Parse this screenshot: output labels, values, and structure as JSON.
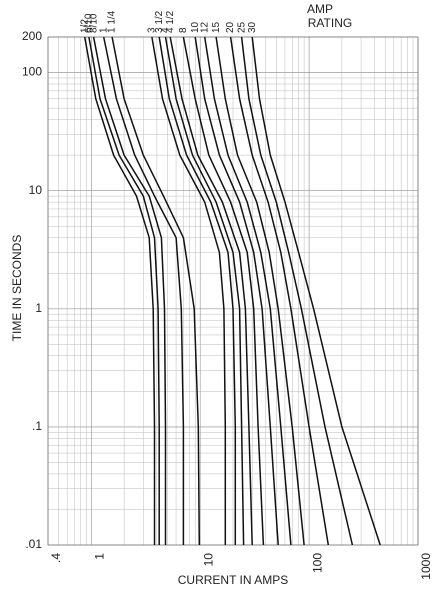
{
  "chart_data": {
    "type": "line",
    "x_label": "CURRENT IN AMPS",
    "y_label": "TIME IN SECONDS",
    "annotation": [
      "AMP",
      "RATING"
    ],
    "log_x": true,
    "log_y": true,
    "grid": true,
    "color": "#111111",
    "xlim": [
      0.4,
      1000
    ],
    "xticks": [
      {
        "value": 0.4,
        "label": ".4"
      },
      1,
      10,
      100,
      1000
    ],
    "ylim": [
      0.01,
      200
    ],
    "yticks": [
      {
        "value": 0.01,
        "label": ".01"
      },
      {
        "value": 0.1,
        "label": ".1"
      },
      1,
      10,
      100,
      200
    ],
    "series": [
      {
        "name": "1/2",
        "x": [
          0.87,
          1.1,
          1.6,
          2.6,
          3.4,
          3.7,
          3.8,
          3.8
        ],
        "values": [
          200,
          60,
          20,
          9,
          4,
          1,
          0.1,
          0.01
        ]
      },
      {
        "name": "6/10",
        "x": [
          0.95,
          1.2,
          1.8,
          3,
          3.8,
          4.1,
          4.2,
          4.2
        ],
        "values": [
          200,
          60,
          20,
          9,
          4,
          1,
          0.1,
          0.01
        ]
      },
      {
        "name": "8/10",
        "x": [
          1.05,
          1.35,
          2,
          3.4,
          4.4,
          4.7,
          4.8,
          4.8
        ],
        "values": [
          200,
          60,
          20,
          9,
          4,
          1,
          0.1,
          0.01
        ]
      },
      {
        "name": "1",
        "x": [
          1.3,
          1.7,
          2.5,
          3.8,
          6,
          6.7,
          7,
          7
        ],
        "values": [
          200,
          60,
          20,
          9,
          4,
          1,
          0.1,
          0.01
        ]
      },
      {
        "name": "1 1/4",
        "x": [
          1.55,
          2,
          3,
          4.6,
          7,
          8.8,
          9.6,
          9.8
        ],
        "values": [
          200,
          60,
          20,
          9,
          4,
          1,
          0.1,
          0.01
        ]
      },
      {
        "name": "3",
        "x": [
          3.6,
          4.5,
          6.5,
          11,
          15,
          16.5,
          17,
          17
        ],
        "values": [
          200,
          60,
          20,
          8,
          3,
          1,
          0.1,
          0.01
        ]
      },
      {
        "name": "3 1/2",
        "x": [
          4.2,
          5.2,
          7.5,
          12.5,
          18,
          20,
          21,
          21
        ],
        "values": [
          200,
          60,
          20,
          8,
          3,
          1,
          0.1,
          0.01
        ]
      },
      {
        "name": "4",
        "x": [
          4.8,
          6,
          8.5,
          14,
          20,
          23,
          24,
          25
        ],
        "values": [
          200,
          60,
          20,
          8,
          3,
          1,
          0.1,
          0.01
        ]
      },
      {
        "name": "4 1/2",
        "x": [
          5.3,
          6.8,
          9.5,
          16,
          23,
          26,
          28,
          30
        ],
        "values": [
          200,
          60,
          20,
          8,
          3,
          1,
          0.1,
          0.01
        ]
      },
      {
        "name": "8",
        "x": [
          7,
          9,
          12,
          19,
          27,
          31,
          34,
          38
        ],
        "values": [
          200,
          60,
          20,
          8,
          3,
          1,
          0.1,
          0.01
        ]
      },
      {
        "name": "10",
        "x": [
          9,
          11,
          15,
          23,
          31,
          37,
          44,
          52
        ],
        "values": [
          200,
          60,
          20,
          8,
          3,
          1,
          0.1,
          0.01
        ]
      },
      {
        "name": "12",
        "x": [
          11,
          13.5,
          18,
          27,
          36,
          44,
          55,
          68
        ],
        "values": [
          200,
          60,
          20,
          8,
          3,
          1,
          0.1,
          0.01
        ]
      },
      {
        "name": "15",
        "x": [
          14,
          17,
          22,
          33,
          43,
          52,
          70,
          90
        ],
        "values": [
          200,
          60,
          20,
          8,
          3,
          1,
          0.1,
          0.01
        ]
      },
      {
        "name": "20",
        "x": [
          19,
          23,
          30,
          42,
          55,
          68,
          100,
          150
        ],
        "values": [
          200,
          60,
          20,
          8,
          3,
          1,
          0.1,
          0.01
        ]
      },
      {
        "name": "25",
        "x": [
          24,
          28,
          36,
          50,
          65,
          85,
          140,
          250
        ],
        "values": [
          200,
          60,
          20,
          8,
          3,
          1,
          0.1,
          0.01
        ]
      },
      {
        "name": "30",
        "x": [
          30,
          35,
          44,
          60,
          80,
          110,
          200,
          450
        ],
        "values": [
          200,
          60,
          20,
          8,
          3,
          1,
          0.1,
          0.01
        ]
      }
    ]
  }
}
